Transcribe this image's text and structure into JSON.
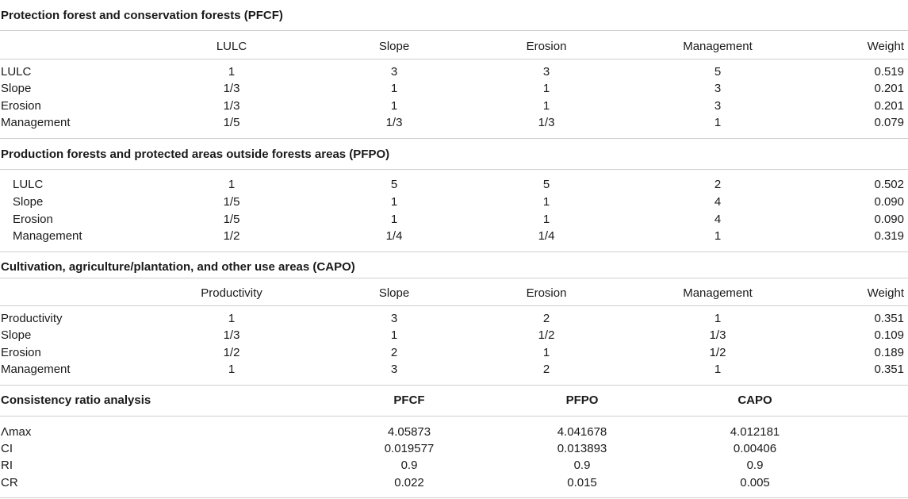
{
  "sections": [
    {
      "title": "Protection forest and conservation forests (PFCF)",
      "headers": [
        "",
        "LULC",
        "Slope",
        "Erosion",
        "Management",
        "Weight"
      ],
      "rows": [
        [
          "LULC",
          "1",
          "3",
          "3",
          "5",
          "0.519"
        ],
        [
          "Slope",
          "1/3",
          "1",
          "1",
          "3",
          "0.201"
        ],
        [
          "Erosion",
          "1/3",
          "1",
          "1",
          "3",
          "0.201"
        ],
        [
          "Management",
          "1/5",
          "1/3",
          "1/3",
          "1",
          "0.079"
        ]
      ]
    },
    {
      "title": "Production forests and protected areas outside forests areas (PFPO)",
      "rows": [
        [
          "LULC",
          "1",
          "5",
          "5",
          "2",
          "0.502"
        ],
        [
          "Slope",
          "1/5",
          "1",
          "1",
          "4",
          "0.090"
        ],
        [
          "Erosion",
          "1/5",
          "1",
          "1",
          "4",
          "0.090"
        ],
        [
          "Management",
          "1/2",
          "1/4",
          "1/4",
          "1",
          "0.319"
        ]
      ]
    },
    {
      "title": "Cultivation, agriculture/plantation, and other use areas (CAPO)",
      "headers": [
        "",
        "Productivity",
        "Slope",
        "Erosion",
        "Management",
        "Weight"
      ],
      "rows": [
        [
          "Productivity",
          "1",
          "3",
          "2",
          "1",
          "0.351"
        ],
        [
          "Slope",
          "1/3",
          "1",
          "1/2",
          "1/3",
          "0.109"
        ],
        [
          "Erosion",
          "1/2",
          "2",
          "1",
          "1/2",
          "0.189"
        ],
        [
          "Management",
          "1",
          "3",
          "2",
          "1",
          "0.351"
        ]
      ]
    }
  ],
  "consistency": {
    "title": "Consistency ratio analysis",
    "headers": [
      "PFCF",
      "PFPO",
      "CAPO"
    ],
    "rows": [
      [
        "Λmax",
        "4.05873",
        "4.041678",
        "4.012181"
      ],
      [
        "CI",
        "0.019577",
        "0.013893",
        "0.00406"
      ],
      [
        "RI",
        "0.9",
        "0.9",
        "0.9"
      ],
      [
        "CR",
        "0.022",
        "0.015",
        "0.005"
      ]
    ]
  }
}
